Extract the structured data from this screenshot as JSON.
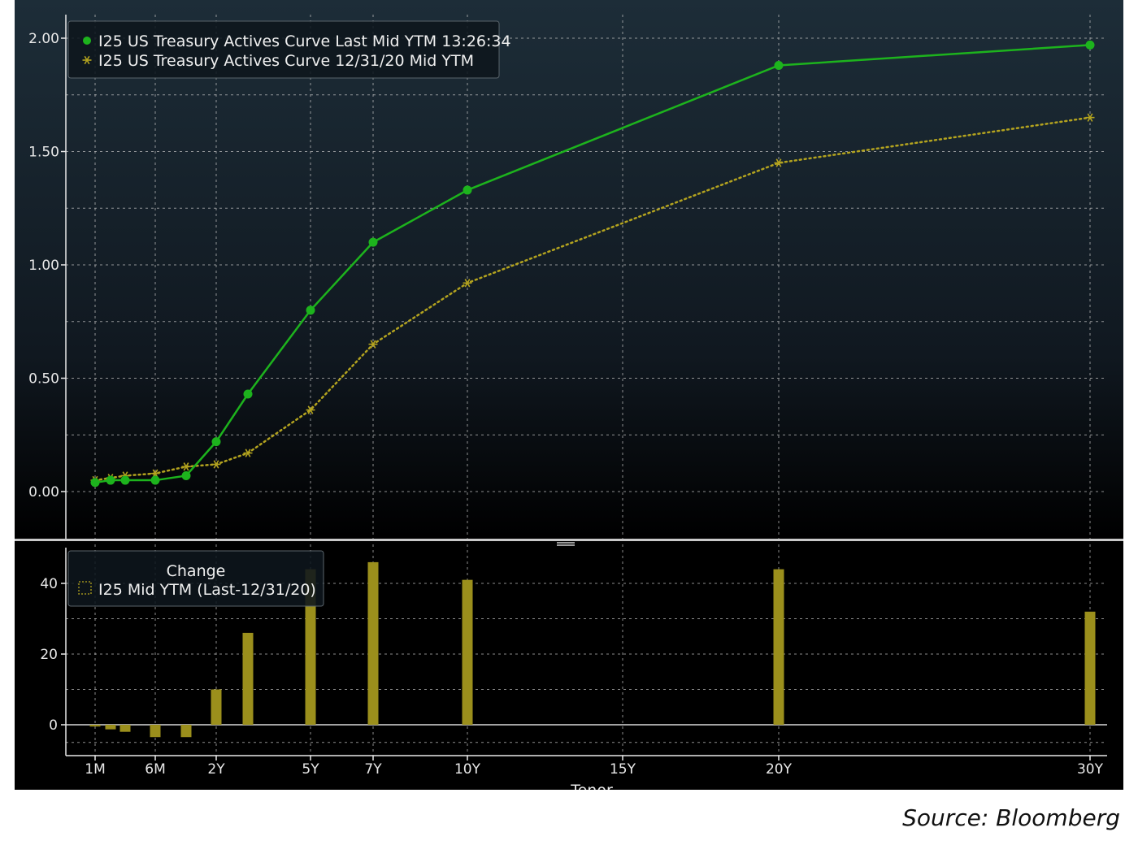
{
  "source_text": "Source: Bloomberg",
  "colors": {
    "green_series": "#1db31d",
    "gold_series": "#b3a31f",
    "bar": "#9b8f1c",
    "grid": "#bdbdbd",
    "axis": "#e8e8e8"
  },
  "chart_data": [
    {
      "type": "line",
      "x_ticks": [
        "1M",
        "6M",
        "2Y",
        "5Y",
        "7Y",
        "10Y",
        "15Y",
        "20Y",
        "30Y"
      ],
      "x_tick_months": [
        1,
        6,
        24,
        60,
        84,
        120,
        180,
        240,
        360
      ],
      "xlabel": "Tenor",
      "ylim": [
        0,
        2.1
      ],
      "y_ticks": [
        "0.00",
        "0.50",
        "1.00",
        "1.50",
        "2.00"
      ],
      "y_tick_values": [
        0,
        0.5,
        1.0,
        1.5,
        2.0
      ],
      "grid": true,
      "legend_position": "top-left",
      "series": [
        {
          "name": "I25 US Treasury Actives Curve Last Mid YTM 13:26:34",
          "marker": "circle",
          "line_style": "solid",
          "color": "#1db31d",
          "x_months": [
            1,
            2,
            3,
            6,
            12,
            24,
            36,
            60,
            84,
            120,
            240,
            360
          ],
          "values": [
            0.04,
            0.05,
            0.05,
            0.05,
            0.07,
            0.22,
            0.43,
            0.8,
            1.1,
            1.33,
            1.88,
            1.97
          ]
        },
        {
          "name": "I25 US Treasury Actives Curve 12/31/20 Mid YTM",
          "marker": "asterisk",
          "line_style": "dotted",
          "color": "#b3a31f",
          "x_months": [
            1,
            2,
            3,
            6,
            12,
            24,
            36,
            60,
            84,
            120,
            240,
            360
          ],
          "values": [
            0.05,
            0.06,
            0.07,
            0.08,
            0.11,
            0.12,
            0.17,
            0.36,
            0.65,
            0.92,
            1.45,
            1.65
          ]
        }
      ]
    },
    {
      "type": "bar",
      "legend_title": "Change",
      "legend_position": "top-left",
      "ylim": [
        -9,
        50
      ],
      "y_ticks": [
        "0",
        "20",
        "40"
      ],
      "y_tick_values": [
        0,
        20,
        40
      ],
      "grid": true,
      "series": [
        {
          "name": "I25 Mid YTM (Last-12/31/20)",
          "color": "#9b8f1c",
          "x_months": [
            1,
            2,
            3,
            6,
            12,
            24,
            36,
            60,
            84,
            120,
            240,
            360
          ],
          "values": [
            -0.5,
            -1.3,
            -2.0,
            -3.5,
            -3.5,
            10,
            26,
            44,
            46,
            41,
            44,
            32
          ]
        }
      ]
    }
  ]
}
